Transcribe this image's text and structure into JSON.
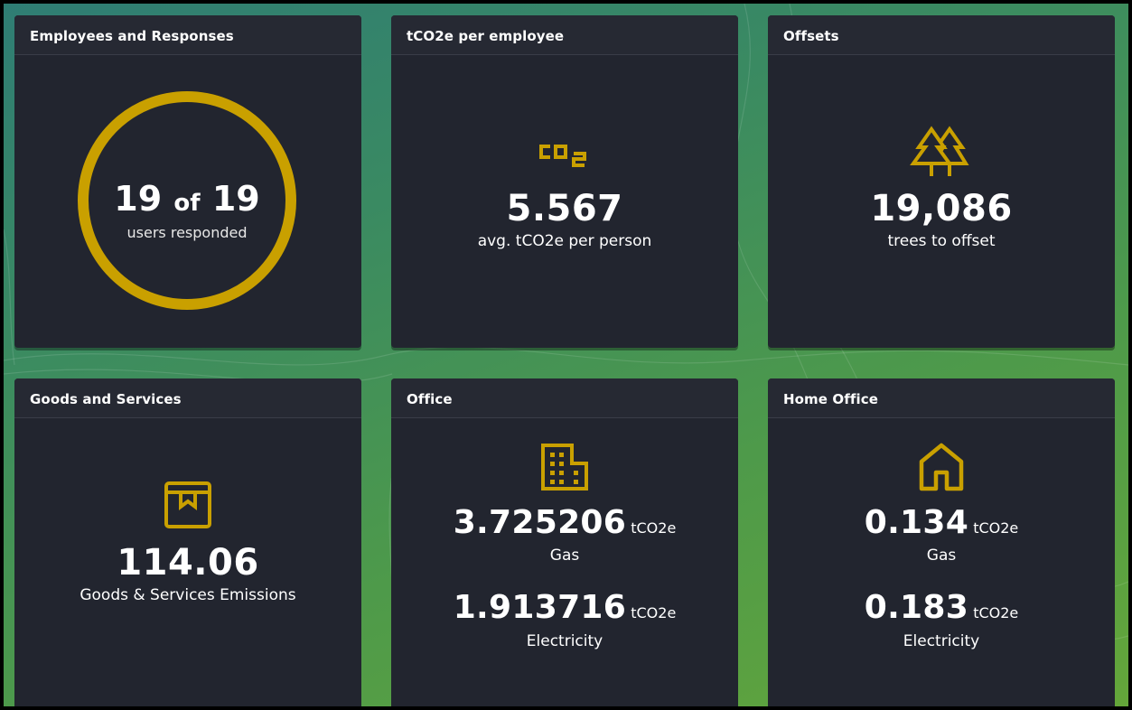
{
  "colors": {
    "accent": "#c9a000",
    "card_bg": "#22252f",
    "text": "#ffffff"
  },
  "cards": {
    "responses": {
      "title": "Employees and Responses",
      "count": "19",
      "of": "of",
      "total": "19",
      "label": "users responded",
      "progress": 1.0
    },
    "per_employee": {
      "title": "tCO2e per employee",
      "icon": "co2-icon",
      "value": "5.567",
      "label": "avg. tCO2e per person"
    },
    "offsets": {
      "title": "Offsets",
      "icon": "trees-icon",
      "value": "19,086",
      "label": "trees to offset"
    },
    "goods": {
      "title": "Goods and Services",
      "icon": "package-icon",
      "value": "114.06",
      "label": "Goods & Services Emissions"
    },
    "office": {
      "title": "Office",
      "icon": "building-icon",
      "gas_value": "3.725206",
      "gas_unit": "tCO2e",
      "gas_label": "Gas",
      "elec_value": "1.913716",
      "elec_unit": "tCO2e",
      "elec_label": "Electricity"
    },
    "home_office": {
      "title": "Home Office",
      "icon": "house-icon",
      "gas_value": "0.134",
      "gas_unit": "tCO2e",
      "gas_label": "Gas",
      "elec_value": "0.183",
      "elec_unit": "tCO2e",
      "elec_label": "Electricity"
    }
  }
}
